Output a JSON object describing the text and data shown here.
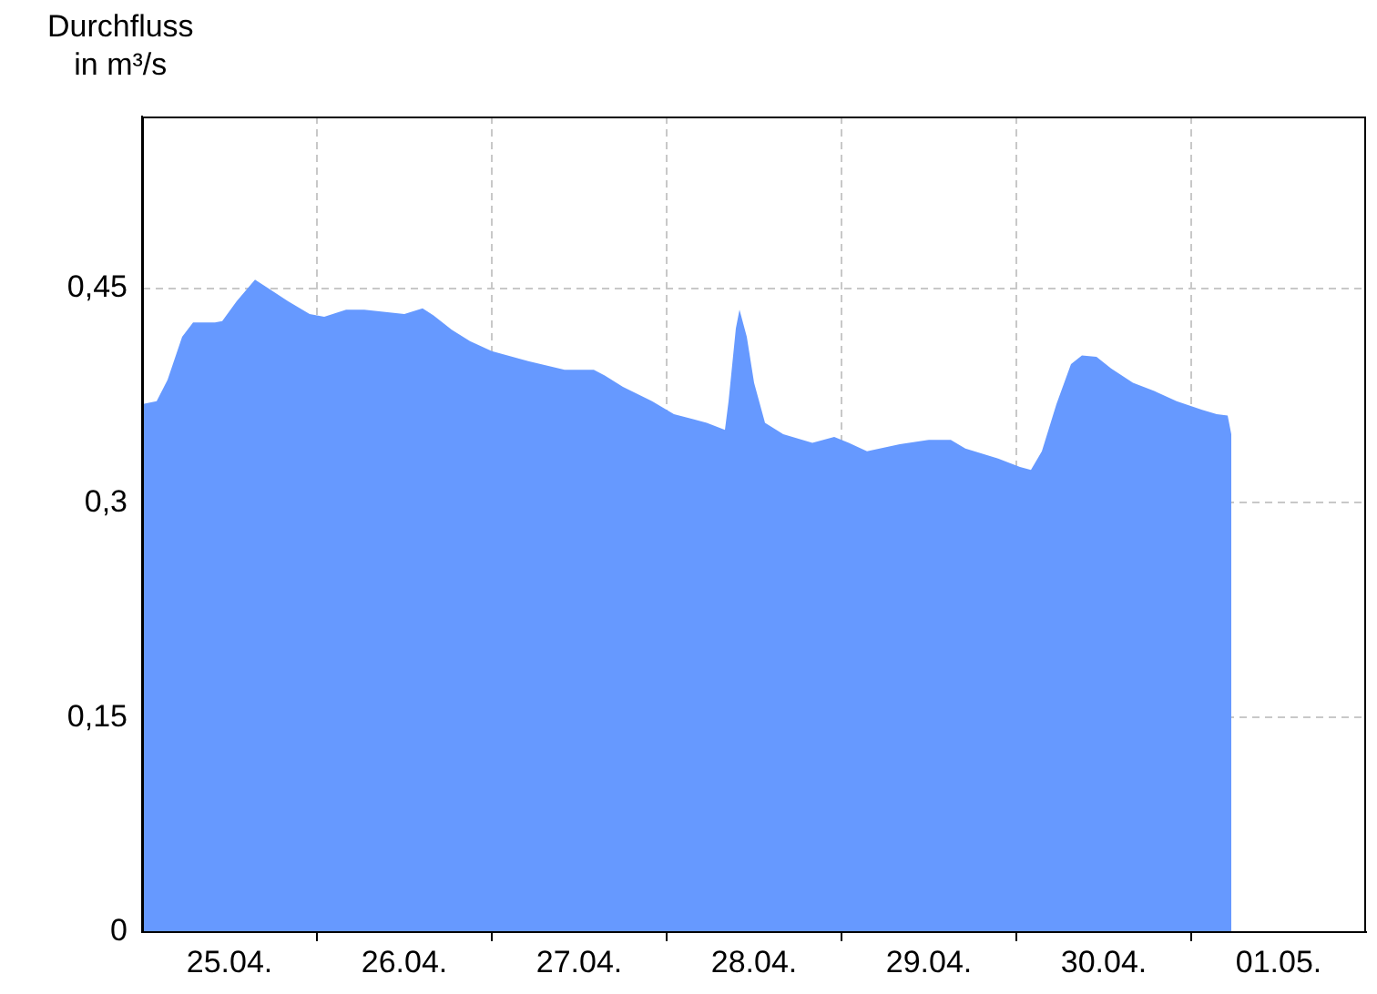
{
  "chart_data": {
    "type": "area",
    "ylabel": "Durchfluss\nin m³/s",
    "x": [
      "--04-25T00:00",
      "--04-25T02:00",
      "--04-25T03:30",
      "--04-25T05:30",
      "--04-25T07:00",
      "--04-25T10:00",
      "--04-25T11:00",
      "--04-25T13:00",
      "--04-25T15:30",
      "--04-25T17:00",
      "--04-25T20:00",
      "--04-25T23:00",
      "--04-26T01:00",
      "--04-26T04:00",
      "--04-26T06:30",
      "--04-26T12:00",
      "--04-26T14:30",
      "--04-26T16:00",
      "--04-26T18:30",
      "--04-26T21:00",
      "--04-27T00:00",
      "--04-27T05:00",
      "--04-27T10:00",
      "--04-27T14:00",
      "--04-27T15:30",
      "--04-27T18:00",
      "--04-27T22:00",
      "--04-28T01:00",
      "--04-28T05:30",
      "--04-28T08:00",
      "--04-28T08:30",
      "--04-28T09:30",
      "--04-28T10:00",
      "--04-28T11:00",
      "--04-28T12:00",
      "--04-28T13:30",
      "--04-28T16:00",
      "--04-28T20:00",
      "--04-28T23:00",
      "--04-29T01:00",
      "--04-29T03:30",
      "--04-29T08:00",
      "--04-29T12:00",
      "--04-29T15:00",
      "--04-29T17:00",
      "--04-29T21:30",
      "--04-30T00:30",
      "--04-30T02:00",
      "--04-30T03:30",
      "--04-30T05:30",
      "--04-30T07:30",
      "--04-30T09:00",
      "--04-30T11:00",
      "--04-30T13:00",
      "--04-30T16:00",
      "--04-30T19:00",
      "--04-30T22:00",
      "--05-01T01:30",
      "--05-01T03:30",
      "--05-01T05:00",
      "--05-01T05:30"
    ],
    "series": [
      {
        "color": "#6699ff",
        "values": [
          0.369,
          0.371,
          0.386,
          0.416,
          0.426,
          0.426,
          0.427,
          0.441,
          0.456,
          0.451,
          0.441,
          0.432,
          0.43,
          0.435,
          0.435,
          0.432,
          0.436,
          0.431,
          0.421,
          0.413,
          0.406,
          0.399,
          0.393,
          0.393,
          0.389,
          0.381,
          0.371,
          0.362,
          0.356,
          0.351,
          0.371,
          0.422,
          0.435,
          0.416,
          0.384,
          0.356,
          0.348,
          0.342,
          0.346,
          0.342,
          0.336,
          0.341,
          0.344,
          0.344,
          0.338,
          0.331,
          0.325,
          0.323,
          0.336,
          0.369,
          0.397,
          0.403,
          0.402,
          0.394,
          0.384,
          0.378,
          0.371,
          0.365,
          0.362,
          0.361,
          0.348
        ]
      }
    ],
    "xlim": [
      "--04-25T00:00",
      "--05-02T00:00"
    ],
    "xticks": [
      {
        "value": "--04-25T12:00",
        "label": "25.04."
      },
      {
        "value": "--04-26T00:00",
        "label": null
      },
      {
        "value": "--04-26T12:00",
        "label": "26.04."
      },
      {
        "value": "--04-27T00:00",
        "label": null
      },
      {
        "value": "--04-27T12:00",
        "label": "27.04."
      },
      {
        "value": "--04-28T00:00",
        "label": null
      },
      {
        "value": "--04-28T12:00",
        "label": "28.04."
      },
      {
        "value": "--04-29T00:00",
        "label": null
      },
      {
        "value": "--04-29T12:00",
        "label": "29.04."
      },
      {
        "value": "--04-30T00:00",
        "label": null
      },
      {
        "value": "--04-30T12:00",
        "label": "30.04."
      },
      {
        "value": "--05-01T00:00",
        "label": null
      },
      {
        "value": "--05-01T12:00",
        "label": "01.05."
      }
    ],
    "ylim": [
      0,
      0.57
    ],
    "yticks": [
      {
        "value": 0,
        "label": "0"
      },
      {
        "value": 0.15,
        "label": "0,15"
      },
      {
        "value": 0.3,
        "label": "0,3"
      },
      {
        "value": 0.45,
        "label": "0,45"
      }
    ],
    "grid": true
  }
}
